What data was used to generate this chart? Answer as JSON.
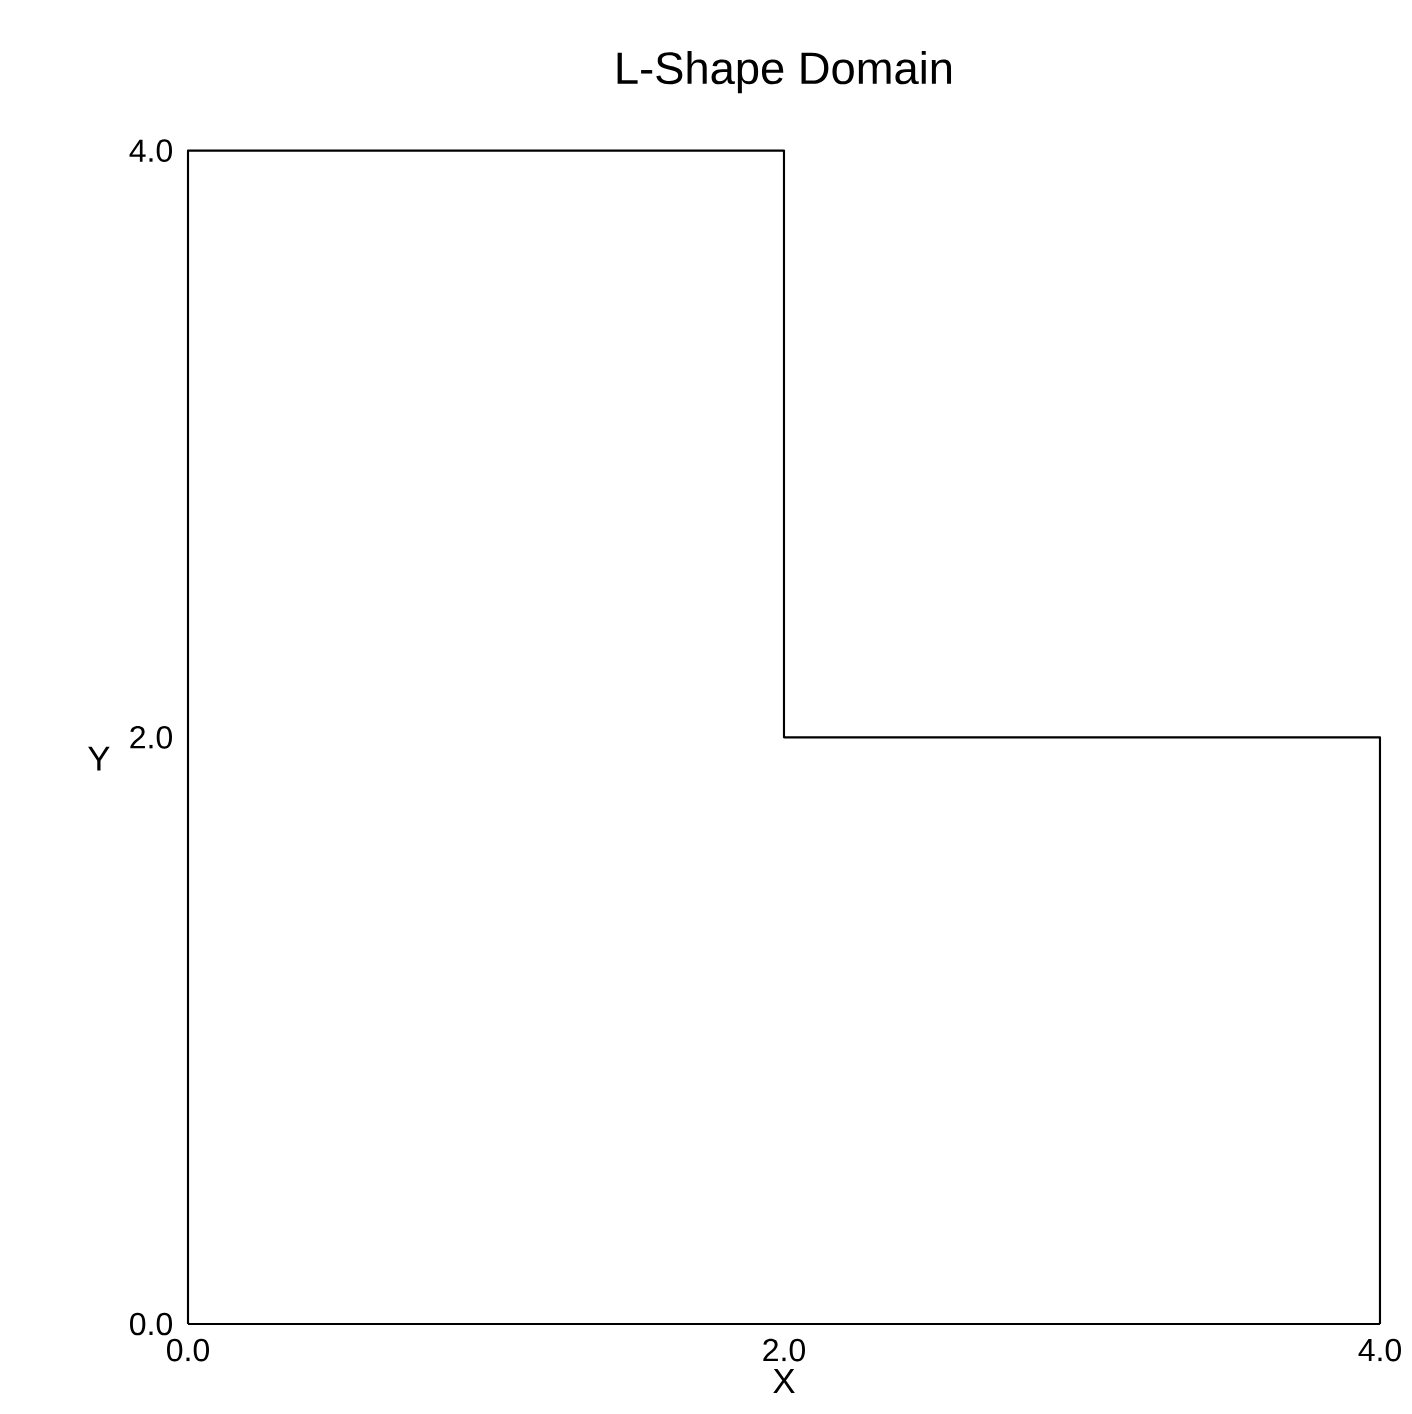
{
  "chart_data": {
    "type": "line",
    "title": "L-Shape Domain",
    "xlabel": "X",
    "ylabel": "Y",
    "xlim": [
      0,
      4
    ],
    "ylim": [
      0,
      4
    ],
    "xticks": [
      {
        "value": 0,
        "label": "0.0"
      },
      {
        "value": 2,
        "label": "2.0"
      },
      {
        "value": 4,
        "label": "4.0"
      }
    ],
    "yticks": [
      {
        "value": 0,
        "label": "0.0"
      },
      {
        "value": 2,
        "label": "2.0"
      },
      {
        "value": 4,
        "label": "4.0"
      }
    ],
    "series": [
      {
        "color": "#000000",
        "x": [
          0,
          0,
          2,
          2,
          4,
          4
        ],
        "values": [
          0,
          4,
          4,
          2,
          2,
          0
        ]
      },
      {
        "color": "#000000",
        "x": [
          0,
          4
        ],
        "values": [
          0,
          0
        ]
      }
    ]
  }
}
